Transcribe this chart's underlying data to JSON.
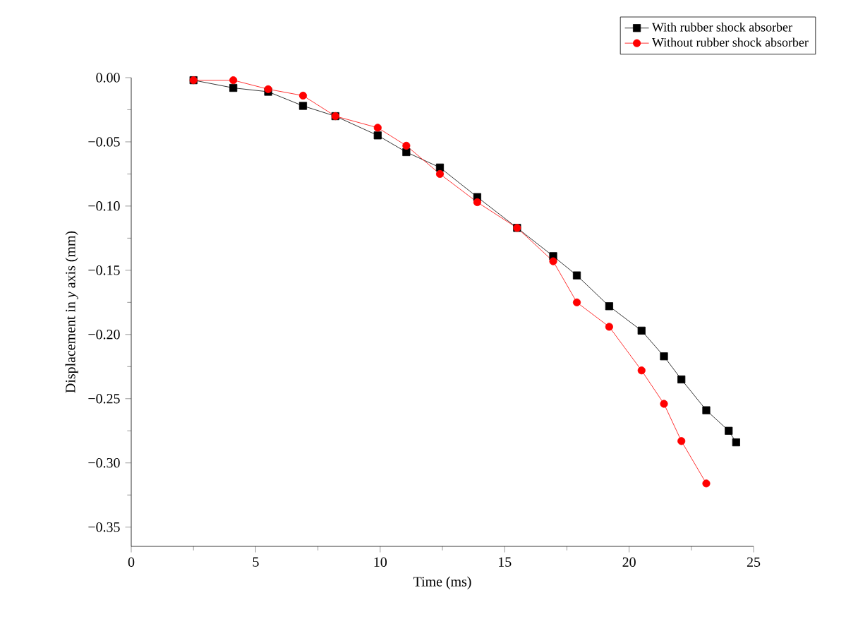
{
  "chart_data": {
    "type": "line",
    "xlabel": "Time (ms)",
    "ylabel": "Displacement in *y* axis (mm)",
    "xlim": [
      0,
      25
    ],
    "ylim": [
      -0.365,
      0
    ],
    "xticks": [
      0,
      5,
      10,
      15,
      20,
      25
    ],
    "yticks": [
      {
        "value": 0,
        "label": "0.00"
      },
      {
        "value": -0.05,
        "label": "−0.05"
      },
      {
        "value": -0.1,
        "label": "−0.10"
      },
      {
        "value": -0.15,
        "label": "−0.15"
      },
      {
        "value": -0.2,
        "label": "−0.20"
      },
      {
        "value": -0.25,
        "label": "−0.25"
      },
      {
        "value": -0.3,
        "label": "−0.30"
      },
      {
        "value": -0.35,
        "label": "−0.35"
      }
    ],
    "legend": "top right",
    "grid": false,
    "line_style": "solid",
    "series": [
      {
        "name": "With rubber shock absorber",
        "color": "#000000",
        "marker": "square",
        "x": [
          2.5,
          4.1,
          5.5,
          6.9,
          8.2,
          9.9,
          11.05,
          12.4,
          13.9,
          15.5,
          16.95,
          17.9,
          19.2,
          20.5,
          21.4,
          22.1,
          23.1,
          24.0,
          24.3
        ],
        "values": [
          -0.002,
          -0.008,
          -0.011,
          -0.022,
          -0.03,
          -0.045,
          -0.058,
          -0.07,
          -0.093,
          -0.117,
          -0.139,
          -0.154,
          -0.178,
          -0.197,
          -0.217,
          -0.235,
          -0.259,
          -0.275,
          -0.284
        ]
      },
      {
        "name": "Without rubber shock absorber",
        "color": "#ff0000",
        "marker": "circle",
        "x": [
          2.5,
          4.1,
          5.5,
          6.9,
          8.2,
          9.9,
          11.05,
          12.4,
          13.9,
          15.5,
          16.95,
          17.9,
          19.2,
          20.5,
          21.4,
          22.1,
          23.1
        ],
        "values": [
          -0.002,
          -0.002,
          -0.009,
          -0.014,
          -0.03,
          -0.039,
          -0.053,
          -0.075,
          -0.097,
          -0.117,
          -0.143,
          -0.175,
          -0.194,
          -0.228,
          -0.254,
          -0.283,
          -0.316
        ]
      }
    ]
  }
}
